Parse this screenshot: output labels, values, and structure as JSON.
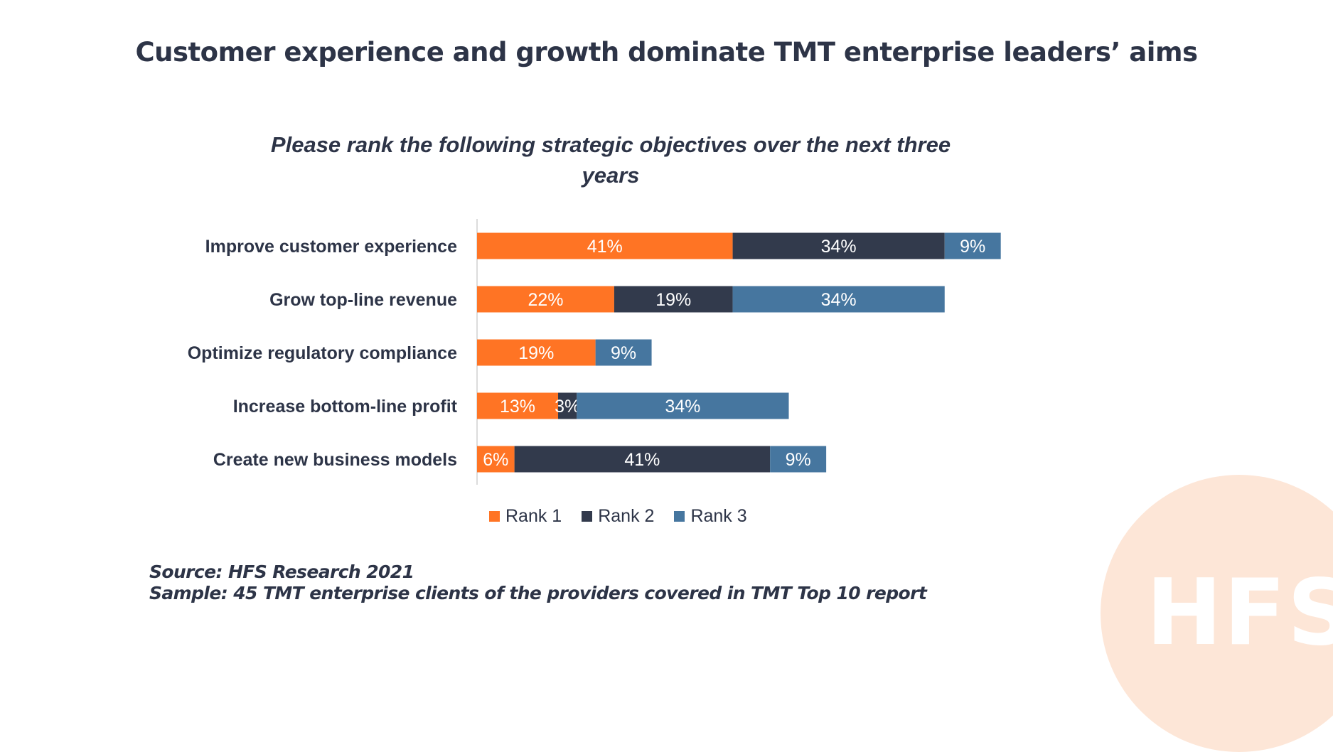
{
  "page": {
    "headline": "Customer experience and growth dominate TMT enterprise leaders’ aims",
    "source_line": "Source: HFS Research 2021",
    "sample_line": "Sample: 45 TMT enterprise clients of the providers covered in TMT Top 10 report",
    "brand_logo": "HFS"
  },
  "chart_data": {
    "type": "bar",
    "orientation": "horizontal",
    "stacked": true,
    "title": "Please rank the following strategic objectives over the next three years",
    "categories": [
      "Improve customer experience",
      "Grow top-line revenue",
      "Optimize regulatory compliance",
      "Increase bottom-line profit",
      "Create new business models"
    ],
    "series": [
      {
        "name": "Rank 1",
        "color": "#ff7424",
        "values": [
          41,
          22,
          19,
          13,
          6
        ]
      },
      {
        "name": "Rank 2",
        "color": "#323a4c",
        "values": [
          34,
          19,
          0,
          3,
          41
        ]
      },
      {
        "name": "Rank 3",
        "color": "#46769f",
        "values": [
          9,
          34,
          9,
          34,
          9
        ]
      }
    ],
    "value_suffix": "%",
    "xlabel": "",
    "ylabel": "",
    "xlim": [
      0,
      100
    ],
    "grid": false,
    "legend_position": "bottom"
  }
}
